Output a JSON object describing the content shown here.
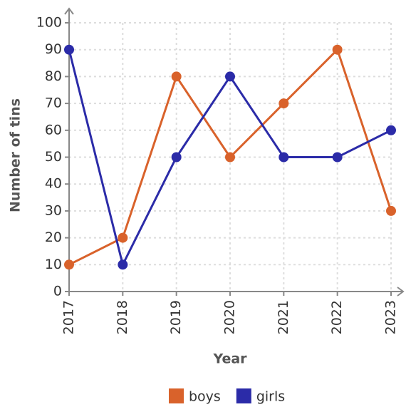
{
  "chart_data": {
    "type": "line",
    "x_label": "Year",
    "y_label": "Number of tins",
    "categories": [
      "2017",
      "2018",
      "2019",
      "2020",
      "2021",
      "2022",
      "2023"
    ],
    "series": [
      {
        "name": "boys",
        "color": "#d9622b",
        "values": [
          10,
          20,
          80,
          50,
          70,
          90,
          30
        ]
      },
      {
        "name": "girls",
        "color": "#2b2ba8",
        "values": [
          90,
          10,
          50,
          80,
          50,
          50,
          60
        ]
      }
    ],
    "ylim": [
      0,
      100
    ],
    "yticks": [
      0,
      10,
      20,
      30,
      40,
      50,
      60,
      70,
      80,
      90,
      100
    ],
    "grid": true,
    "legend": "bottom"
  }
}
